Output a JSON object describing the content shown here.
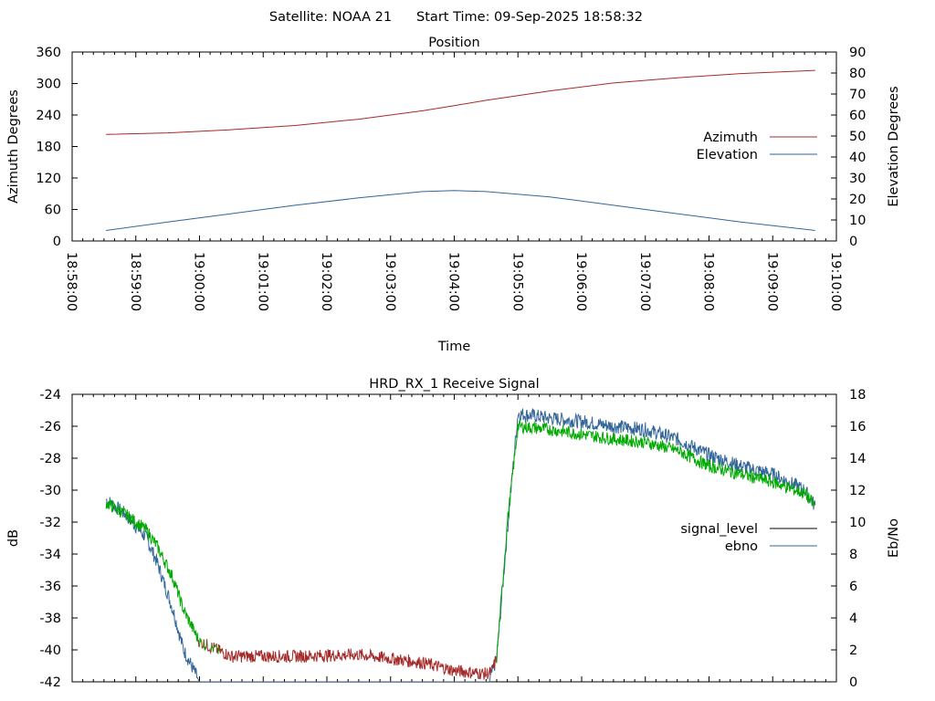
{
  "header": {
    "satellite": "Satellite: NOAA 21",
    "start_time": "Start Time: 09-Sep-2025 18:58:32"
  },
  "colors": {
    "azimuth": "#a52a2a",
    "elevation": "#336699",
    "signal_level_high": "#00aa00",
    "signal_level_low": "#a52a2a",
    "ebno": "#336699"
  },
  "chart_data": [
    {
      "type": "line",
      "title": "Position",
      "xlabel": "Time",
      "ylabel": "Azimuth Degrees",
      "y2label": "Elevation Degrees",
      "xlim": [
        "18:58:00",
        "19:10:00"
      ],
      "ylim": [
        0,
        360
      ],
      "y2lim": [
        0,
        90
      ],
      "xticks": [
        "18:58:00",
        "18:59:00",
        "19:00:00",
        "19:01:00",
        "19:02:00",
        "19:03:00",
        "19:04:00",
        "19:05:00",
        "19:06:00",
        "19:07:00",
        "19:08:00",
        "19:09:00",
        "19:10:00"
      ],
      "yticks": [
        0,
        60,
        120,
        180,
        240,
        300,
        360
      ],
      "y2ticks": [
        0,
        10,
        20,
        30,
        40,
        50,
        60,
        70,
        80,
        90
      ],
      "legend_position": "right",
      "series": [
        {
          "name": "Azimuth",
          "axis": "y",
          "x": [
            "18:58:32",
            "18:59:30",
            "19:00:30",
            "19:01:30",
            "19:02:30",
            "19:03:30",
            "19:04:00",
            "19:04:30",
            "19:05:30",
            "19:06:30",
            "19:07:30",
            "19:08:30",
            "19:09:40"
          ],
          "values": [
            203,
            206,
            212,
            220,
            232,
            248,
            258,
            268,
            286,
            301,
            311,
            319,
            325
          ]
        },
        {
          "name": "Elevation",
          "axis": "y2",
          "x": [
            "18:58:32",
            "18:59:30",
            "19:00:30",
            "19:01:30",
            "19:02:30",
            "19:03:30",
            "19:04:00",
            "19:04:30",
            "19:05:30",
            "19:06:30",
            "19:07:30",
            "19:08:30",
            "19:09:40"
          ],
          "values": [
            5,
            9,
            13,
            17,
            20.5,
            23.5,
            24,
            23.5,
            21,
            17,
            13,
            9,
            5
          ]
        }
      ]
    },
    {
      "type": "line",
      "title": "HRD_RX_1 Receive Signal",
      "xlabel": "",
      "ylabel": "dB",
      "y2label": "Eb/No",
      "xlim": [
        "18:58:00",
        "19:10:00"
      ],
      "ylim": [
        -42,
        -24
      ],
      "y2lim": [
        0,
        18
      ],
      "yticks": [
        -42,
        -40,
        -38,
        -36,
        -34,
        -32,
        -30,
        -28,
        -26,
        -24
      ],
      "y2ticks": [
        0,
        2,
        4,
        6,
        8,
        10,
        12,
        14,
        16,
        18
      ],
      "legend_position": "right",
      "series": [
        {
          "name": "signal_level",
          "axis": "y",
          "x": [
            "18:58:32",
            "18:58:50",
            "18:59:10",
            "18:59:20",
            "18:59:35",
            "18:59:45",
            "19:00:00",
            "19:00:30",
            "19:01:30",
            "19:02:30",
            "19:03:30",
            "19:04:00",
            "19:04:30",
            "19:04:35",
            "19:04:40",
            "19:04:50",
            "19:05:00",
            "19:05:30",
            "19:06:00",
            "19:06:30",
            "19:07:00",
            "19:07:30",
            "19:08:00",
            "19:08:30",
            "19:09:00",
            "19:09:30",
            "19:09:40"
          ],
          "values": [
            -30.8,
            -31.5,
            -32.5,
            -33.5,
            -35.5,
            -37.5,
            -39.5,
            -40.4,
            -40.4,
            -40.3,
            -40.8,
            -41.3,
            -41.5,
            -41.4,
            -40.5,
            -32.0,
            -26.0,
            -26.2,
            -26.5,
            -26.8,
            -27.0,
            -27.5,
            -28.5,
            -29.0,
            -29.5,
            -30.2,
            -31.0
          ]
        },
        {
          "name": "ebno",
          "axis": "y2",
          "x": [
            "18:58:32",
            "18:58:50",
            "18:59:10",
            "18:59:20",
            "18:59:35",
            "18:59:45",
            "19:00:00",
            "19:04:33",
            "19:04:40",
            "19:04:50",
            "19:05:00",
            "19:05:30",
            "19:06:00",
            "19:06:30",
            "19:07:00",
            "19:07:30",
            "19:08:00",
            "19:08:30",
            "19:09:00",
            "19:09:30",
            "19:09:40"
          ],
          "values": [
            11.4,
            10.5,
            9.0,
            7.5,
            4.5,
            2.0,
            0,
            0,
            1.5,
            9.5,
            16.8,
            16.5,
            16.3,
            16.0,
            15.8,
            15.2,
            14.2,
            13.5,
            13.0,
            12.0,
            11.0
          ]
        }
      ]
    }
  ]
}
